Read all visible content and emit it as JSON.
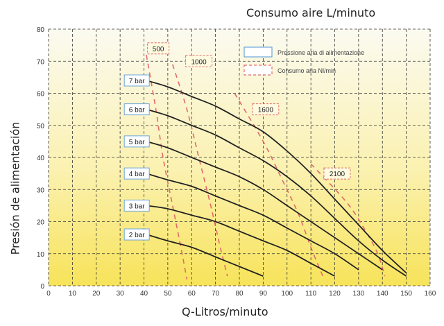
{
  "chart_data": {
    "type": "line",
    "top_label": "Consumo aire L/minuto",
    "xlabel": "Q-Litros/minuto",
    "ylabel": "Presión de alimentación",
    "xlim": [
      0,
      160
    ],
    "ylim": [
      0,
      80
    ],
    "x_ticks": [
      0,
      10,
      20,
      30,
      40,
      50,
      60,
      70,
      80,
      90,
      100,
      110,
      120,
      130,
      140,
      150,
      160
    ],
    "y_ticks": [
      0,
      10,
      20,
      30,
      40,
      50,
      60,
      70,
      80
    ],
    "grid": true,
    "legend_position": "top-right",
    "legend": [
      {
        "label": "Pressione aria di alimentazione",
        "style": "solid",
        "color": "#6aa6d8"
      },
      {
        "label": "Consumo aria Nl/min",
        "style": "dashed",
        "color": "#e06a6a"
      }
    ],
    "series": [
      {
        "name": "7 bar",
        "color": "#222222",
        "points": [
          [
            41,
            64
          ],
          [
            50,
            62
          ],
          [
            60,
            59
          ],
          [
            70,
            56
          ],
          [
            80,
            52
          ],
          [
            90,
            48
          ],
          [
            100,
            42
          ],
          [
            110,
            35
          ],
          [
            120,
            27
          ],
          [
            130,
            19
          ],
          [
            140,
            11
          ],
          [
            150,
            4
          ]
        ]
      },
      {
        "name": "6 bar",
        "color": "#222222",
        "points": [
          [
            41,
            55
          ],
          [
            50,
            53
          ],
          [
            60,
            50
          ],
          [
            70,
            47
          ],
          [
            80,
            43
          ],
          [
            90,
            39
          ],
          [
            100,
            34
          ],
          [
            110,
            28
          ],
          [
            120,
            21
          ],
          [
            130,
            14
          ],
          [
            140,
            8
          ],
          [
            150,
            3
          ]
        ]
      },
      {
        "name": "5 bar",
        "color": "#222222",
        "points": [
          [
            41,
            45
          ],
          [
            50,
            43
          ],
          [
            60,
            40
          ],
          [
            70,
            37
          ],
          [
            80,
            34
          ],
          [
            90,
            30
          ],
          [
            100,
            25
          ],
          [
            110,
            20
          ],
          [
            120,
            15
          ],
          [
            130,
            10
          ],
          [
            140,
            5
          ]
        ]
      },
      {
        "name": "4 bar",
        "color": "#222222",
        "points": [
          [
            41,
            35
          ],
          [
            50,
            33
          ],
          [
            60,
            31
          ],
          [
            70,
            28
          ],
          [
            80,
            25
          ],
          [
            90,
            22
          ],
          [
            100,
            18
          ],
          [
            110,
            14
          ],
          [
            120,
            10
          ],
          [
            130,
            5
          ]
        ]
      },
      {
        "name": "3 bar",
        "color": "#222222",
        "points": [
          [
            41,
            25
          ],
          [
            50,
            24
          ],
          [
            60,
            22
          ],
          [
            70,
            20
          ],
          [
            80,
            17
          ],
          [
            90,
            14
          ],
          [
            100,
            11
          ],
          [
            110,
            7
          ],
          [
            120,
            3
          ]
        ]
      },
      {
        "name": "2 bar",
        "color": "#222222",
        "points": [
          [
            41,
            16
          ],
          [
            50,
            14
          ],
          [
            60,
            12
          ],
          [
            70,
            9
          ],
          [
            80,
            6
          ],
          [
            90,
            3
          ]
        ]
      }
    ],
    "consumption_curves": [
      {
        "name": "500",
        "color": "#e06a6a",
        "points": [
          [
            41,
            72
          ],
          [
            45,
            55
          ],
          [
            48,
            40
          ],
          [
            52,
            25
          ],
          [
            56,
            10
          ],
          [
            58,
            2
          ]
        ]
      },
      {
        "name": "1000",
        "color": "#e06a6a",
        "points": [
          [
            52,
            69
          ],
          [
            58,
            55
          ],
          [
            63,
            40
          ],
          [
            68,
            25
          ],
          [
            72,
            12
          ],
          [
            75,
            3
          ]
        ]
      },
      {
        "name": "1600",
        "color": "#e06a6a",
        "points": [
          [
            78,
            60
          ],
          [
            90,
            45
          ],
          [
            98,
            33
          ],
          [
            105,
            22
          ],
          [
            110,
            12
          ],
          [
            115,
            3
          ]
        ]
      },
      {
        "name": "2100",
        "color": "#e06a6a",
        "points": [
          [
            110,
            38
          ],
          [
            125,
            26
          ],
          [
            133,
            17
          ],
          [
            138,
            10
          ],
          [
            141,
            3
          ]
        ]
      }
    ],
    "series_label_positions": [
      {
        "name": "7 bar",
        "x": 37,
        "y": 64
      },
      {
        "name": "6 bar",
        "x": 37,
        "y": 55
      },
      {
        "name": "5 bar",
        "x": 37,
        "y": 45
      },
      {
        "name": "4 bar",
        "x": 37,
        "y": 35
      },
      {
        "name": "3 bar",
        "x": 37,
        "y": 25
      },
      {
        "name": "2 bar",
        "x": 37,
        "y": 16
      }
    ],
    "flow_label_positions": [
      {
        "name": "500",
        "x": 46,
        "y": 74
      },
      {
        "name": "1000",
        "x": 63,
        "y": 70
      },
      {
        "name": "1600",
        "x": 91,
        "y": 55
      },
      {
        "name": "2100",
        "x": 121,
        "y": 35
      }
    ]
  }
}
